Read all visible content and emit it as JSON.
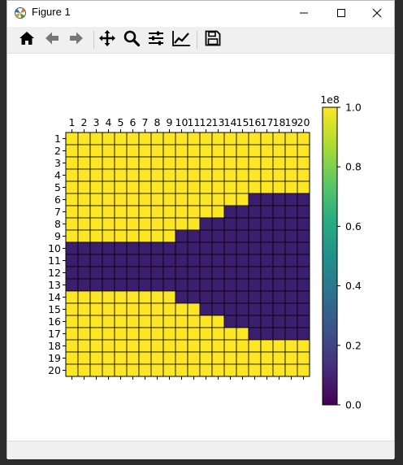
{
  "window": {
    "title": "Figure 1",
    "controls": {
      "minimize": "minimize-icon",
      "maximize": "maximize-icon",
      "close": "close-icon"
    }
  },
  "toolbar": {
    "items": [
      {
        "name": "home-button",
        "icon": "home-icon",
        "tooltip": "Reset original view"
      },
      {
        "name": "back-button",
        "icon": "back-arrow-icon",
        "tooltip": "Back to previous view"
      },
      {
        "name": "forward-button",
        "icon": "forward-arrow-icon",
        "tooltip": "Forward to next view"
      },
      {
        "name": "pan-button",
        "icon": "move-icon",
        "tooltip": "Pan axes"
      },
      {
        "name": "zoom-button",
        "icon": "zoom-icon",
        "tooltip": "Zoom to rectangle"
      },
      {
        "name": "configure-subplots-button",
        "icon": "sliders-icon",
        "tooltip": "Configure subplots"
      },
      {
        "name": "edit-axis-button",
        "icon": "chart-icon",
        "tooltip": "Edit axis, curve and image parameters"
      },
      {
        "name": "save-button",
        "icon": "floppy-disk-icon",
        "tooltip": "Save the figure"
      }
    ]
  },
  "colors": {
    "high": "#fde725",
    "low": "#3b1f6e",
    "cell_border": "#000000"
  },
  "chart_data": {
    "type": "heatmap",
    "x_labels": [
      "1",
      "2",
      "3",
      "4",
      "5",
      "6",
      "7",
      "8",
      "9",
      "10",
      "11",
      "12",
      "13",
      "14",
      "15",
      "16",
      "17",
      "18",
      "19",
      "20"
    ],
    "y_labels": [
      "1",
      "2",
      "3",
      "4",
      "5",
      "6",
      "7",
      "8",
      "9",
      "10",
      "11",
      "12",
      "13",
      "14",
      "15",
      "16",
      "17",
      "18",
      "19",
      "20"
    ],
    "x_axis_position": "top",
    "low_value_spans": [
      {
        "row": 6,
        "from_col": 16,
        "to_col": 20
      },
      {
        "row": 7,
        "from_col": 14,
        "to_col": 20
      },
      {
        "row": 8,
        "from_col": 12,
        "to_col": 20
      },
      {
        "row": 9,
        "from_col": 10,
        "to_col": 20
      },
      {
        "row": 10,
        "from_col": 1,
        "to_col": 20
      },
      {
        "row": 11,
        "from_col": 1,
        "to_col": 20
      },
      {
        "row": 12,
        "from_col": 1,
        "to_col": 20
      },
      {
        "row": 13,
        "from_col": 1,
        "to_col": 20
      },
      {
        "row": 14,
        "from_col": 10,
        "to_col": 20
      },
      {
        "row": 15,
        "from_col": 12,
        "to_col": 20
      },
      {
        "row": 16,
        "from_col": 14,
        "to_col": 20
      },
      {
        "row": 17,
        "from_col": 16,
        "to_col": 20
      }
    ],
    "low_value": 0.0,
    "high_value": 100000000,
    "colorbar": {
      "ticks": [
        0.0,
        0.2,
        0.4,
        0.6,
        0.8,
        1.0
      ],
      "tick_labels": [
        "0.0",
        "0.2",
        "0.4",
        "0.6",
        "0.8",
        "1.0"
      ],
      "offset_label": "1e8",
      "colormap": "viridis"
    }
  }
}
